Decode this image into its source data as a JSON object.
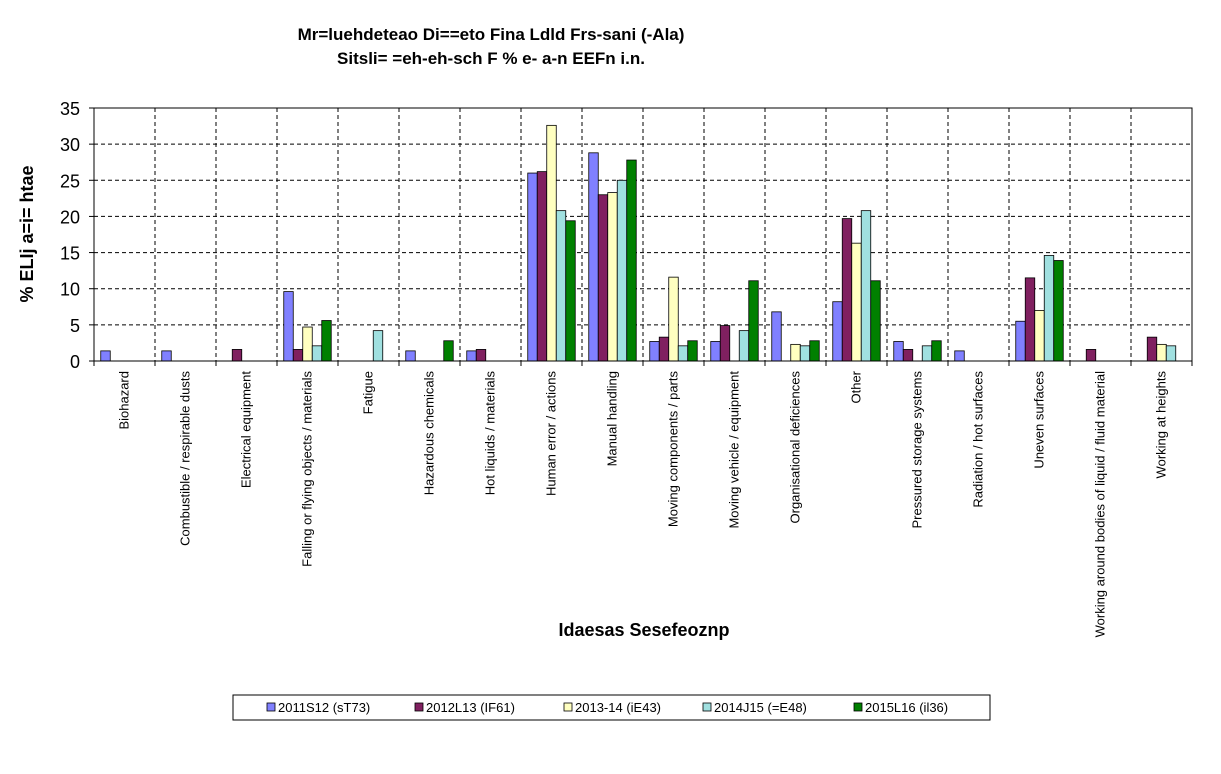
{
  "chart_data": {
    "type": "bar",
    "title_lines": [
      "Mr=luehdeteao Di==eto Fina Ldld Frs-sani (-Ala)",
      "Sitsli= =eh-eh-sch F % e- a-n EEFn i.n."
    ],
    "xlabel": "Idaesas Sesefeoznp",
    "ylabel": "% ELIj a=i= htae",
    "ylim": [
      0,
      35
    ],
    "yticks": [
      "0",
      "5",
      "10",
      "15",
      "20",
      "25",
      "30",
      "35"
    ],
    "grid": true,
    "legend_position": "bottom",
    "categories": [
      "Biohazard",
      "Combustible / respirable dusts",
      "Electrical equipment",
      "Falling or flying objects / materials",
      "Fatigue",
      "Hazardous chemicals",
      "Hot liquids / materials",
      "Human error / actions",
      "Manual handling",
      "Moving components / parts",
      "Moving vehicle / equipment",
      "Organisational deficiences",
      "Other",
      "Pressured storage systems",
      "Radiation / hot surfaces",
      "Uneven surfaces",
      "Working around bodies of liquid / fluid material",
      "Working at heights"
    ],
    "series": [
      {
        "name": "2011S12 (sT73)",
        "color": "#8080ff",
        "values": [
          1.4,
          1.4,
          0,
          9.6,
          0,
          1.4,
          1.4,
          26.0,
          28.8,
          2.7,
          2.7,
          6.8,
          8.2,
          2.7,
          1.4,
          5.5,
          0,
          0
        ]
      },
      {
        "name": "2012L13 (IF61)",
        "color": "#802060",
        "values": [
          0,
          0,
          1.6,
          1.6,
          0,
          0,
          1.6,
          26.2,
          23.0,
          3.3,
          4.9,
          0,
          19.7,
          1.6,
          0,
          11.5,
          1.6,
          3.3
        ]
      },
      {
        "name": "2013-14 (iE43)",
        "color": "#ffffc0",
        "values": [
          0,
          0,
          0,
          4.7,
          0,
          0,
          0,
          32.6,
          23.3,
          11.6,
          0,
          2.3,
          16.3,
          0,
          0,
          7.0,
          0,
          2.3
        ]
      },
      {
        "name": "2014J15 (=E48)",
        "color": "#a0e0e0",
        "values": [
          0,
          0,
          0,
          2.1,
          4.2,
          0,
          0,
          20.8,
          25.0,
          2.1,
          4.2,
          2.1,
          20.8,
          2.1,
          0,
          14.6,
          0,
          2.1
        ]
      },
      {
        "name": "2015L16 (il36)",
        "color": "#008000",
        "values": [
          0,
          0,
          0,
          5.6,
          0,
          2.8,
          0,
          19.4,
          27.8,
          2.8,
          11.1,
          2.8,
          11.1,
          2.8,
          0,
          13.9,
          0,
          0
        ]
      }
    ]
  }
}
